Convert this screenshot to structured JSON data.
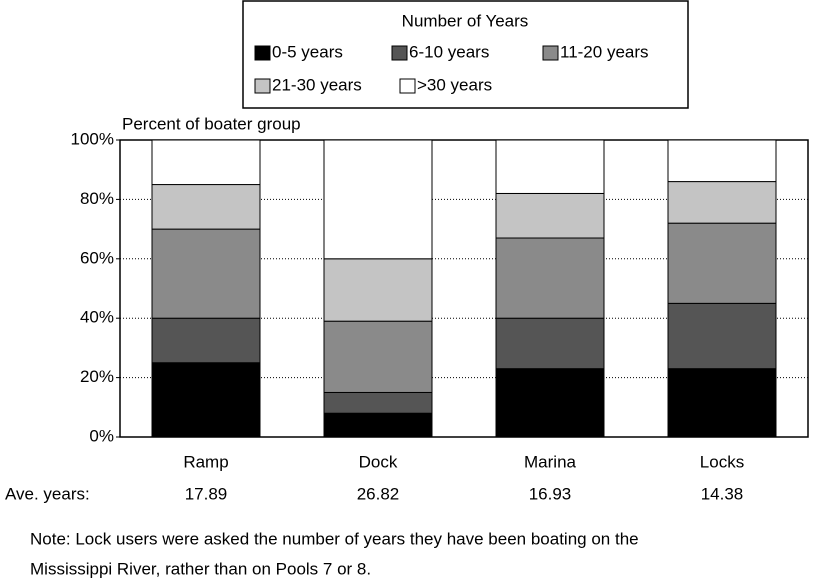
{
  "chart_data": {
    "type": "stacked_bar",
    "legend_title": "Number of Years",
    "y_axis_label": "Percent of boater group",
    "categories": [
      "Ramp",
      "Dock",
      "Marina",
      "Locks"
    ],
    "series": [
      {
        "name": "0-5 years",
        "color": "#000000",
        "values": [
          25,
          8,
          23,
          23
        ]
      },
      {
        "name": "6-10 years",
        "color": "#555555",
        "values": [
          15,
          7,
          17,
          22
        ]
      },
      {
        "name": "11-20 years",
        "color": "#8a8a8a",
        "values": [
          30,
          24,
          27,
          27
        ]
      },
      {
        "name": "21-30 years",
        "color": "#c4c4c4",
        "values": [
          15,
          21,
          15,
          14
        ]
      },
      {
        "name": ">30 years",
        "color": "#ffffff",
        "values": [
          15,
          40,
          18,
          14
        ]
      }
    ],
    "ylim": [
      0,
      100
    ],
    "yticks": [
      {
        "value": 0,
        "label": "0%"
      },
      {
        "value": 20,
        "label": "20%"
      },
      {
        "value": 40,
        "label": "40%"
      },
      {
        "value": 60,
        "label": "60%"
      },
      {
        "value": 80,
        "label": "80%"
      },
      {
        "value": 100,
        "label": "100%"
      }
    ],
    "grid": true,
    "ave_label": "Ave. years:",
    "ave_values": [
      17.89,
      26.82,
      16.93,
      14.38
    ],
    "note": [
      "Note:  Lock users were asked the number of years they have been boating on the",
      "Mississippi River, rather than on Pools 7 or 8."
    ]
  }
}
